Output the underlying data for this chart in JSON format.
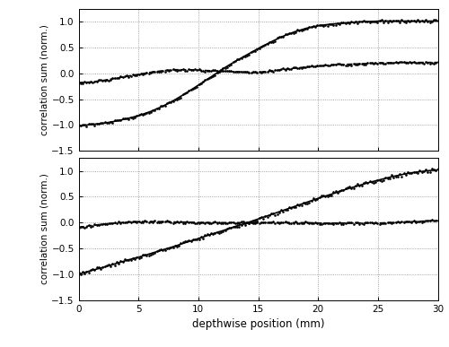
{
  "xlim": [
    0,
    30
  ],
  "ylim": [
    -1.5,
    1.25
  ],
  "xticks": [
    0,
    5,
    10,
    15,
    20,
    25,
    30
  ],
  "yticks": [
    -1.5,
    -1.0,
    -0.5,
    0,
    0.5,
    1.0
  ],
  "xlabel": "depthwise position (mm)",
  "ylabel": "correlation sum (norm.)",
  "top_inphase_x": [
    0,
    1,
    2,
    3,
    4,
    5,
    6,
    7,
    8,
    9,
    10,
    11,
    12,
    13,
    14,
    15,
    16,
    17,
    18,
    19,
    20,
    21,
    22,
    23,
    24,
    25,
    26,
    27,
    28,
    29,
    30
  ],
  "top_inphase_y": [
    -1.02,
    -0.99,
    -0.97,
    -0.93,
    -0.88,
    -0.82,
    -0.74,
    -0.64,
    -0.52,
    -0.38,
    -0.23,
    -0.08,
    0.08,
    0.22,
    0.35,
    0.48,
    0.6,
    0.71,
    0.8,
    0.87,
    0.92,
    0.95,
    0.97,
    0.99,
    1.0,
    1.01,
    1.01,
    1.01,
    1.01,
    1.01,
    1.01
  ],
  "top_quadrature_x": [
    0,
    1,
    2,
    3,
    4,
    5,
    6,
    7,
    8,
    9,
    10,
    11,
    12,
    13,
    14,
    15,
    16,
    17,
    18,
    19,
    20,
    21,
    22,
    23,
    24,
    25,
    26,
    27,
    28,
    29,
    30
  ],
  "top_quadrature_y": [
    -0.18,
    -0.17,
    -0.14,
    -0.1,
    -0.06,
    -0.02,
    0.02,
    0.05,
    0.07,
    0.07,
    0.06,
    0.05,
    0.04,
    0.03,
    0.02,
    0.02,
    0.04,
    0.07,
    0.1,
    0.12,
    0.14,
    0.16,
    0.17,
    0.18,
    0.19,
    0.2,
    0.2,
    0.21,
    0.21,
    0.21,
    0.21
  ],
  "bot_inphase_x": [
    0,
    1,
    2,
    3,
    4,
    5,
    6,
    7,
    8,
    9,
    10,
    11,
    12,
    13,
    14,
    15,
    16,
    17,
    18,
    19,
    20,
    21,
    22,
    23,
    24,
    25,
    26,
    27,
    28,
    29,
    30
  ],
  "bot_inphase_y": [
    -1.0,
    -0.93,
    -0.87,
    -0.8,
    -0.73,
    -0.67,
    -0.6,
    -0.53,
    -0.46,
    -0.38,
    -0.31,
    -0.23,
    -0.16,
    -0.08,
    -0.01,
    0.07,
    0.15,
    0.23,
    0.31,
    0.39,
    0.47,
    0.54,
    0.62,
    0.69,
    0.76,
    0.82,
    0.88,
    0.93,
    0.97,
    1.0,
    1.02
  ],
  "bot_quadrature_x": [
    0,
    1,
    2,
    3,
    4,
    5,
    6,
    7,
    8,
    9,
    10,
    11,
    12,
    13,
    14,
    15,
    16,
    17,
    18,
    19,
    20,
    21,
    22,
    23,
    24,
    25,
    26,
    27,
    28,
    29,
    30
  ],
  "bot_quadrature_y": [
    -0.09,
    -0.06,
    -0.03,
    -0.01,
    0.01,
    0.02,
    0.02,
    0.02,
    0.01,
    0.01,
    0.0,
    0.0,
    0.0,
    0.0,
    0.0,
    0.0,
    0.0,
    0.0,
    0.0,
    0.0,
    -0.01,
    -0.01,
    -0.01,
    -0.01,
    -0.01,
    -0.01,
    0.0,
    0.01,
    0.02,
    0.03,
    0.04
  ],
  "line_color": "#000000",
  "bg_color": "#ffffff",
  "grid_color": "#888888"
}
